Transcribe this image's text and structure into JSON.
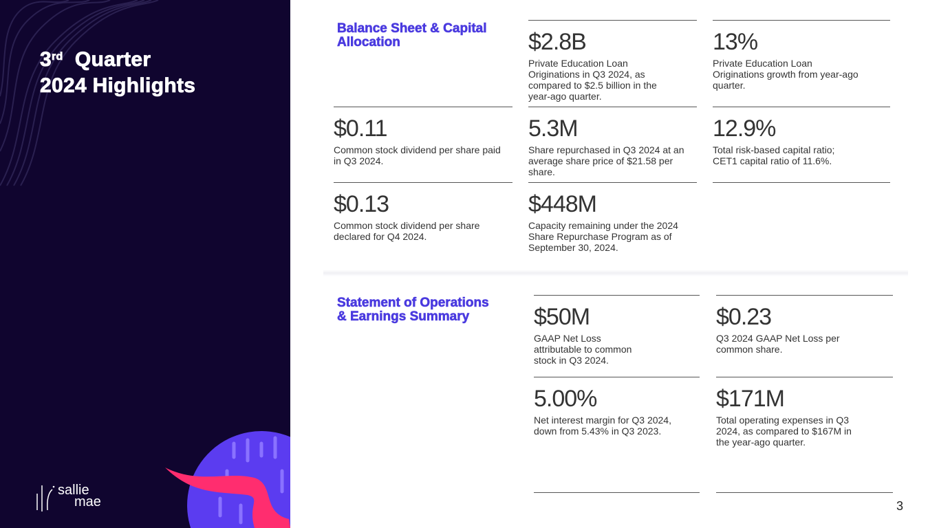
{
  "title": {
    "line1_prefix": "3",
    "line1_sup": "rd",
    "line1_suffix": "Quarter",
    "line2": "2024 Highlights"
  },
  "logo": {
    "line1": "sallie",
    "line2": "mae"
  },
  "sections": [
    {
      "title": "Balance Sheet & Capital Allocation",
      "metrics": [
        {
          "value": "$2.8B",
          "desc": "Private Education Loan Originations in Q3 2024, as compared to $2.5 billion in the year-ago quarter."
        },
        {
          "value": "13%",
          "desc": "Private Education Loan Originations growth from year-ago quarter."
        },
        {
          "value": "$0.11",
          "desc": "Common stock dividend per share paid in Q3 2024."
        },
        {
          "value": "5.3M",
          "desc": "Share repurchased in Q3 2024 at an average share price of $21.58 per share."
        },
        {
          "value": "12.9%",
          "desc": "Total risk-based capital ratio; CET1 capital ratio of 11.6%."
        },
        {
          "value": "$0.13",
          "desc": "Common stock dividend per share declared for Q4 2024."
        },
        {
          "value": "$448M",
          "desc": "Capacity remaining under the 2024 Share Repurchase Program as of September 30, 2024."
        }
      ]
    },
    {
      "title": "Statement of Operations & Earnings Summary",
      "metrics": [
        {
          "value": "$50M",
          "desc": "GAAP Net Loss attributable to common stock in Q3 2024."
        },
        {
          "value": "$0.23",
          "desc": "Q3 2024 GAAP Net Loss per common share."
        },
        {
          "value": "5.00%",
          "desc": "Net interest margin for Q3 2024, down from 5.43% in Q3 2023."
        },
        {
          "value": "$171M",
          "desc": "Total operating expenses in Q3 2024, as compared to $167M in the year-ago quarter."
        }
      ]
    }
  ],
  "page_number": "3",
  "colors": {
    "panel": "#10052f",
    "accent": "#4a3adf",
    "pink": "#ff2d6f"
  }
}
